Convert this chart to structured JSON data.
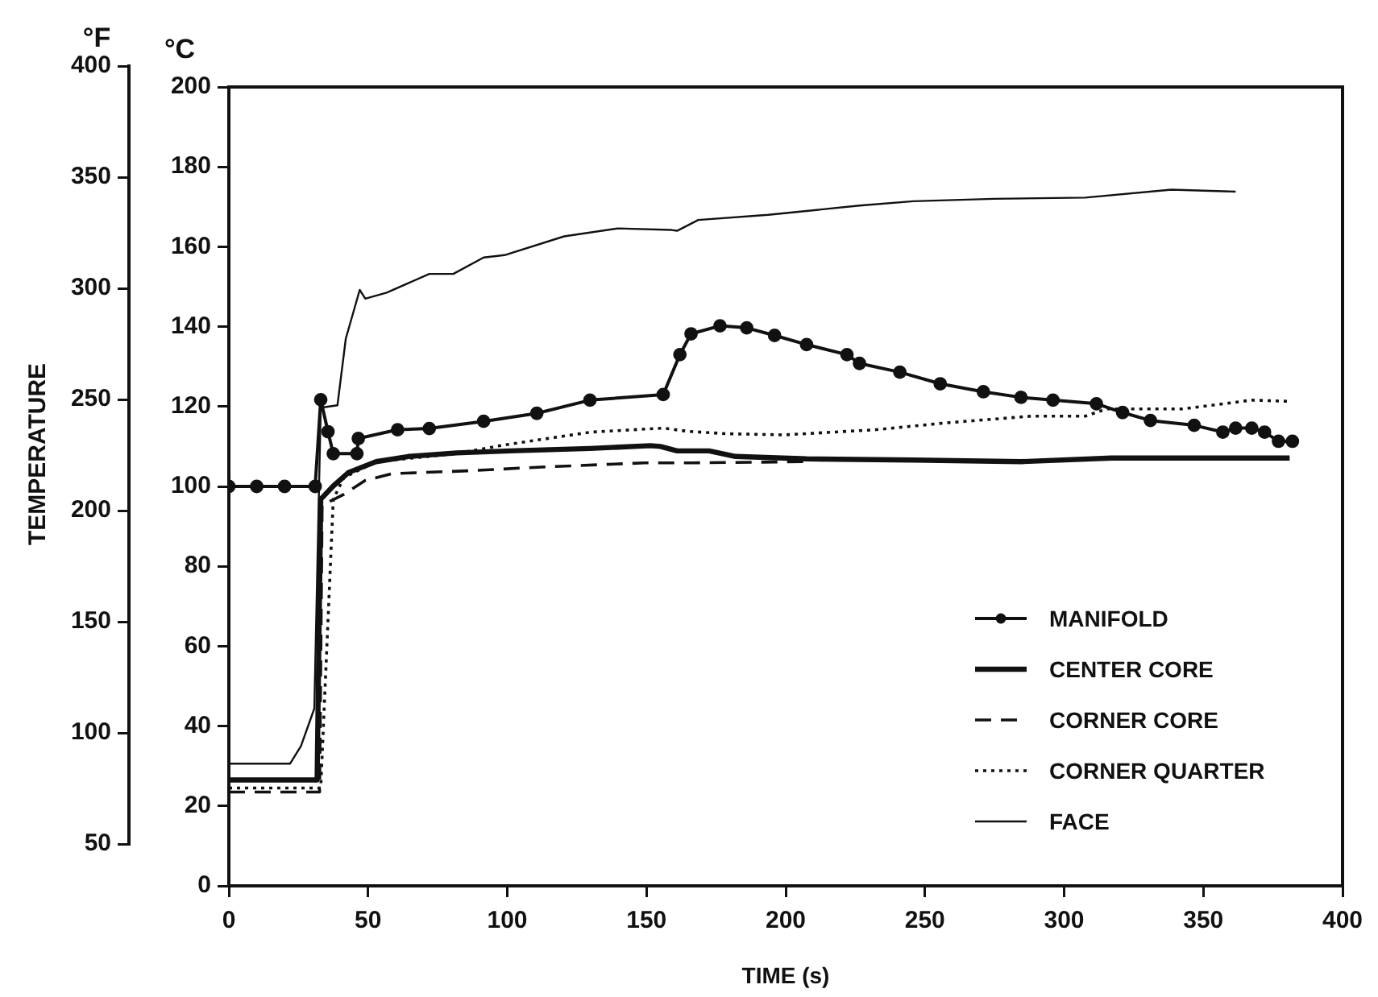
{
  "chart_data": {
    "type": "line",
    "xlabel": "TIME (s)",
    "ylabel": "°C",
    "y2label": "°F",
    "annotations": [
      "TEMPERATURE"
    ],
    "xlim": [
      0,
      400
    ],
    "xticks": [
      0,
      50,
      100,
      150,
      200,
      250,
      300,
      350,
      400
    ],
    "ylim": [
      0,
      200
    ],
    "yticks": [
      0,
      20,
      40,
      60,
      80,
      100,
      120,
      140,
      160,
      180,
      200
    ],
    "y2lim": [
      50,
      400
    ],
    "y2ticks": [
      50,
      100,
      150,
      200,
      250,
      300,
      350,
      400
    ],
    "grid": false,
    "legend": "bottom right",
    "series": [
      {
        "name": "MANIFOLD",
        "color": "#111111",
        "marker": "circle",
        "line_style": "solid",
        "x": [
          0,
          10,
          20,
          31,
          33,
          35.6,
          37.5,
          46,
          46.5,
          60.6,
          72,
          91.5,
          110.6,
          129.7,
          156,
          162,
          166,
          176.4,
          186,
          196,
          207.5,
          222,
          226.5,
          241,
          255.5,
          271,
          284.5,
          296,
          311.6,
          321,
          331,
          346.7,
          357,
          361.6,
          367.4,
          372,
          377,
          382
        ],
        "values": [
          100,
          100,
          100,
          100,
          121.7,
          113.7,
          108.2,
          108.2,
          112,
          114.2,
          114.5,
          116.3,
          118.3,
          121.6,
          123,
          133,
          138.2,
          140.2,
          139.7,
          137.8,
          135.5,
          133,
          130.8,
          128.6,
          125.7,
          123.7,
          122.3,
          121.6,
          120.7,
          118.5,
          116.5,
          115.3,
          113.6,
          114.6,
          114.6,
          113.6,
          111.3,
          111.3
        ]
      },
      {
        "name": "CENTER CORE",
        "color": "#111111",
        "marker": "none",
        "line_style": "solid",
        "x": [
          0,
          31.7,
          33,
          37.5,
          43,
          52.9,
          64.5,
          81.8,
          101,
          129.7,
          151.4,
          155,
          161,
          172.5,
          182,
          207.5,
          246,
          284.6,
          317,
          381
        ],
        "values": [
          26.5,
          26.5,
          96.8,
          100.1,
          103.5,
          106.2,
          107.5,
          108.4,
          108.9,
          109.5,
          110.2,
          110,
          108.9,
          108.9,
          107.5,
          106.9,
          106.6,
          106.2,
          107.1,
          107.1
        ]
      },
      {
        "name": "CORNER CORE",
        "color": "#111111",
        "marker": "none",
        "line_style": "dashed",
        "x": [
          0,
          32.6,
          33.5,
          35.5,
          41.3,
          49,
          58.6,
          85.7,
          110.7,
          149.3,
          166.7,
          207.5
        ],
        "values": [
          23.5,
          23.5,
          95.5,
          96,
          98,
          101.5,
          103.2,
          103.9,
          104.8,
          105.9,
          105.9,
          106.2
        ]
      },
      {
        "name": "CORNER QUARTER",
        "color": "#111111",
        "marker": "none",
        "line_style": "dotted",
        "x": [
          0,
          33,
          37.5,
          41.3,
          52.9,
          81.8,
          97.3,
          110.7,
          130,
          156,
          164.8,
          178.3,
          199.5,
          232.4,
          257.4,
          288.3,
          307.6,
          315.3,
          342.4,
          367.4,
          381
        ],
        "values": [
          24.5,
          24.5,
          96.8,
          102.2,
          106.2,
          108.2,
          110.2,
          111.6,
          113.6,
          114.6,
          113.8,
          113.2,
          112.9,
          114.2,
          115.9,
          117.6,
          117.6,
          119.4,
          119.4,
          121.6,
          121.3
        ]
      },
      {
        "name": "FACE",
        "color": "#111111",
        "marker": "none",
        "line_style": "solid",
        "x": [
          0,
          22,
          25.9,
          30.7,
          33,
          39,
          42,
          47,
          49,
          56.7,
          72,
          80.6,
          91.5,
          99,
          120.4,
          139.7,
          159,
          161,
          168.6,
          193.7,
          226.5,
          245.8,
          274.8,
          307.6,
          338.5,
          361.6
        ],
        "values": [
          30.6,
          30.6,
          35,
          44.4,
          119.7,
          120.3,
          137,
          149.2,
          147,
          148.5,
          153.2,
          153.2,
          157.3,
          157.9,
          162.6,
          164.6,
          164.2,
          164,
          166.7,
          168,
          170.3,
          171.4,
          172,
          172.3,
          174.3,
          173.8
        ]
      }
    ]
  }
}
